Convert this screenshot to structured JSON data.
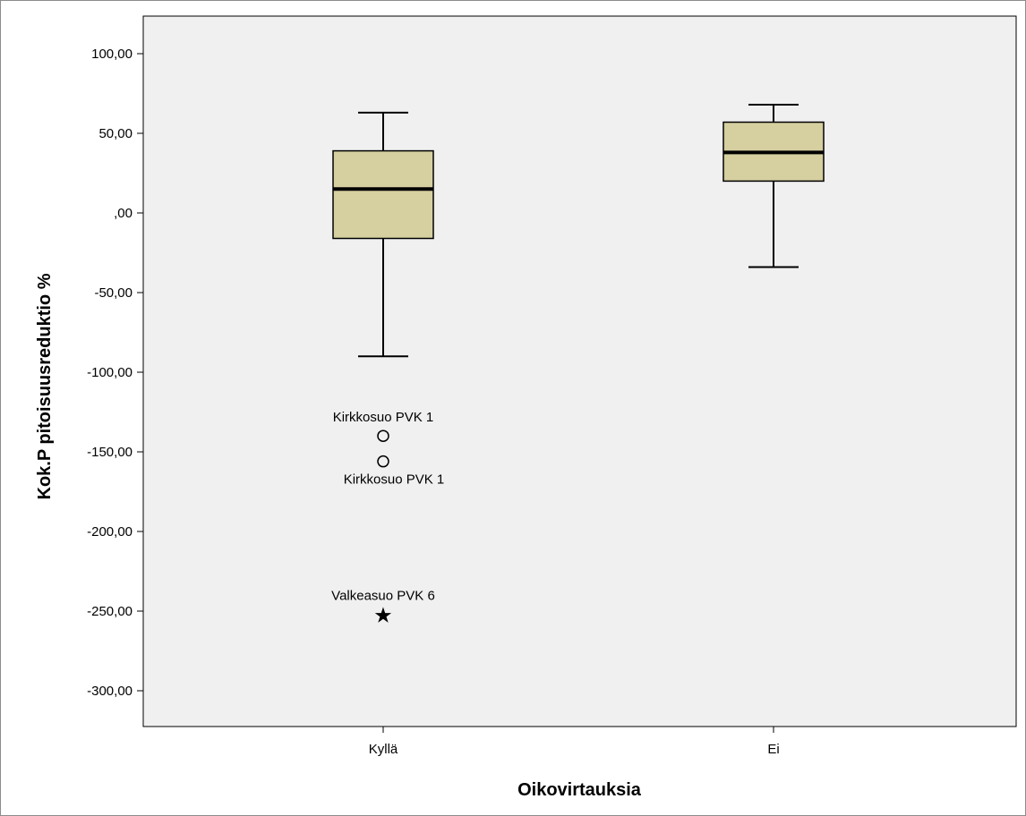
{
  "chart_data": {
    "type": "boxplot",
    "xlabel": "Oikovirtauksia",
    "ylabel": "Kok.P pitoisuusreduktio %",
    "ylim": [
      -320,
      120
    ],
    "yticks": [
      100,
      50,
      0,
      -50,
      -100,
      -150,
      -200,
      -250,
      -300
    ],
    "ytick_labels": [
      "100,00",
      "50,00",
      ",00",
      "-50,00",
      "-100,00",
      "-150,00",
      "-200,00",
      "-250,00",
      "-300,00"
    ],
    "grid": false,
    "plot_background": "#f0f0f0",
    "box_color": "#d6cfa0",
    "categories": [
      "Kyllä",
      "Ei"
    ],
    "boxes": [
      {
        "category": "Kyllä",
        "whisker_low": -90,
        "q1": -16,
        "median": 15,
        "q3": 39,
        "whisker_high": 63,
        "outliers": [
          {
            "value": -140,
            "marker": "circle",
            "label": "Kirkkosuo PVK 1",
            "label_position": "above"
          },
          {
            "value": -156,
            "marker": "circle",
            "label": "Kirkkosuo PVK 1",
            "label_position": "below"
          },
          {
            "value": -252,
            "marker": "star",
            "label": "Valkeasuo PVK 6",
            "label_position": "above"
          }
        ]
      },
      {
        "category": "Ei",
        "whisker_low": -34,
        "q1": 20,
        "median": 38,
        "q3": 57,
        "whisker_high": 68,
        "outliers": []
      }
    ]
  }
}
